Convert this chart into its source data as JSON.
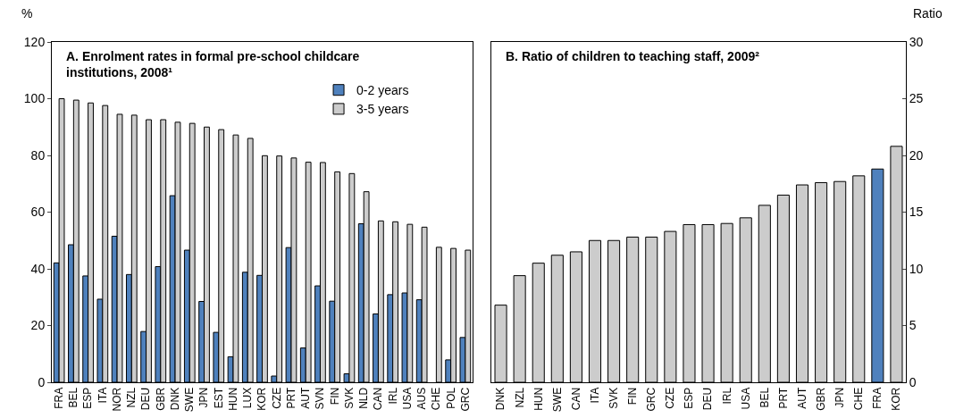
{
  "chart_data": [
    {
      "type": "bar",
      "title": "A. Enrolment rates in formal pre-school childcare institutions, 2008¹",
      "ylabel": "%",
      "categories": [
        "FRA",
        "BEL",
        "ESP",
        "ITA",
        "NOR",
        "NZL",
        "DEU",
        "GBR",
        "DNK",
        "SWE",
        "JPN",
        "EST",
        "HUN",
        "LUX",
        "KOR",
        "CZE",
        "PRT",
        "AUT",
        "SVN",
        "FIN",
        "SVK",
        "NLD",
        "CAN",
        "IRL",
        "USA",
        "AUS",
        "CHE",
        "POL",
        "GRC"
      ],
      "series": [
        {
          "name": "0-2 years",
          "color": "#4f81bd",
          "values": [
            42.1,
            48.5,
            37.5,
            29.3,
            51.5,
            38,
            17.9,
            40.8,
            65.8,
            46.6,
            28.5,
            17.6,
            9,
            38.8,
            37.7,
            2.2,
            47.5,
            12.1,
            34,
            28.6,
            3,
            55.9,
            24.1,
            30.9,
            31.5,
            29.1,
            null,
            7.9,
            15.8
          ]
        },
        {
          "name": "3-5 years",
          "color": "#cccccc",
          "values": [
            100,
            99.5,
            98.5,
            97.6,
            94.5,
            94.2,
            92.6,
            92.6,
            91.7,
            91.3,
            90,
            89.1,
            87.2,
            86,
            79.9,
            79.8,
            79.1,
            77.6,
            77.5,
            74.2,
            73.6,
            67.2,
            56.9,
            56.6,
            55.7,
            54.7,
            47.6,
            47.2,
            46.6
          ]
        }
      ],
      "ylim": [
        0,
        120
      ],
      "yticks": [
        0,
        20,
        40,
        60,
        80,
        100,
        120
      ],
      "legend": "top right",
      "grid": false
    },
    {
      "type": "bar",
      "title": "B. Ratio of children to teaching staff, 2009²",
      "y2label": "Ratio",
      "categories": [
        "DNK",
        "NZL",
        "HUN",
        "SWE",
        "CAN",
        "ITA",
        "SVK",
        "FIN",
        "GRC",
        "CZE",
        "ESP",
        "DEU",
        "IRL",
        "USA",
        "BEL",
        "PRT",
        "AUT",
        "GBR",
        "JPN",
        "CHE",
        "FRA",
        "KOR"
      ],
      "series": [
        {
          "axis": "y2",
          "colors": [
            "#cccccc",
            "#cccccc",
            "#cccccc",
            "#cccccc",
            "#cccccc",
            "#cccccc",
            "#cccccc",
            "#cccccc",
            "#cccccc",
            "#cccccc",
            "#cccccc",
            "#cccccc",
            "#cccccc",
            "#cccccc",
            "#cccccc",
            "#cccccc",
            "#cccccc",
            "#cccccc",
            "#cccccc",
            "#cccccc",
            "#4f81bd",
            "#cccccc"
          ],
          "values": [
            6.8,
            9.4,
            10.5,
            11.2,
            11.5,
            12.5,
            12.5,
            12.8,
            12.8,
            13.3,
            13.9,
            13.9,
            14,
            14.5,
            15.6,
            16.5,
            17.4,
            17.6,
            17.7,
            18.2,
            18.8,
            20.8
          ]
        }
      ],
      "y2lim": [
        0,
        30
      ],
      "y2ticks": [
        0,
        5,
        10,
        15,
        20,
        25,
        30
      ],
      "legend": false,
      "grid": false
    }
  ]
}
